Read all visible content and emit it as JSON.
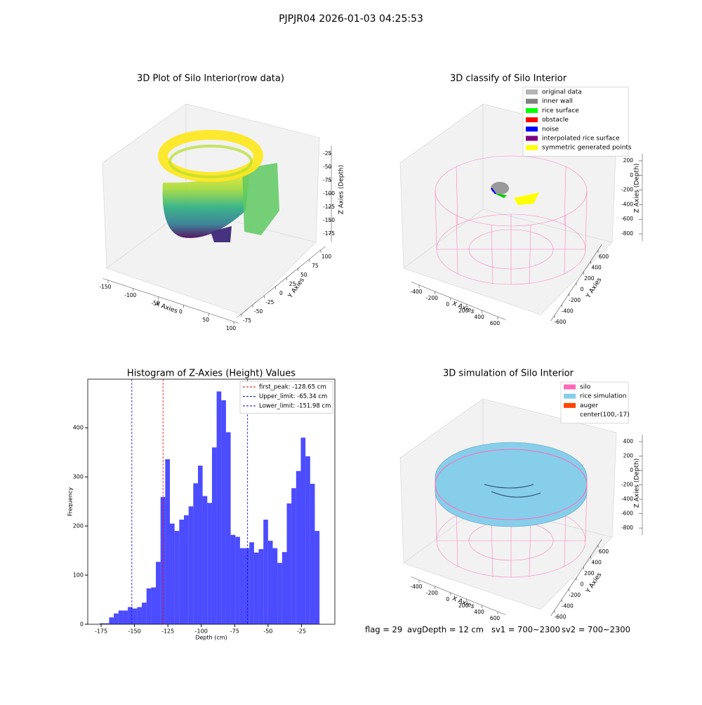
{
  "title": "PJPJR04 2026-01-03 04:25:53",
  "footer": [
    "flag = 29",
    "avgDepth = 12 cm",
    "sv1 = 700~2300",
    "sv2 = 700~2300"
  ],
  "chart_data": [
    {
      "type": "scatter3d",
      "title": "3D Plot of Silo Interior(row data)",
      "xlabel": "X Axies",
      "ylabel": "Y Axies",
      "zlabel": "Z Axies (Depth)",
      "xlim": [
        -160,
        110
      ],
      "xticks": [
        -150,
        -100,
        -50,
        0,
        50,
        100
      ],
      "ylim": [
        -85,
        110
      ],
      "yticks": [
        -75,
        -50,
        -25,
        0,
        25,
        50,
        75,
        100
      ],
      "zlim": [
        -190,
        -10
      ],
      "zticks": [
        -175,
        -150,
        -125,
        -100,
        -75,
        -50,
        -25
      ]
    },
    {
      "type": "scatter3d",
      "title": "3D classify of Silo Interior",
      "xlabel": "X Axies",
      "ylabel": "Y Axies",
      "zlabel": "Z Axies (Depth)",
      "xlim": [
        -500,
        700
      ],
      "xticks": [
        -400,
        -200,
        0,
        200,
        400,
        600
      ],
      "ylim": [
        -700,
        700
      ],
      "yticks": [
        -600,
        -400,
        -200,
        0,
        200,
        400,
        600
      ],
      "zlim": [
        -900,
        300
      ],
      "zticks": [
        -800,
        -600,
        -400,
        -200,
        0,
        200
      ],
      "legend_position": "upper right",
      "legend": [
        {
          "name": "original data",
          "color": "#b3b3b3"
        },
        {
          "name": "inner wall",
          "color": "#808080"
        },
        {
          "name": "rice surface",
          "color": "#00ff00"
        },
        {
          "name": "obstacle",
          "color": "#ff0000"
        },
        {
          "name": "noise",
          "color": "#0000ff"
        },
        {
          "name": "interpolated rice surface",
          "color": "#800080"
        },
        {
          "name": "symmetric generated points",
          "color": "#ffff00"
        }
      ]
    },
    {
      "type": "histogram",
      "title": "Histogram of Z-Axies (Height) Values",
      "xlabel": "Depth (cm)",
      "ylabel": "Frequency",
      "color": "#0000ff",
      "bins": [
        -176,
        -172.5,
        -169,
        -165.5,
        -162,
        -158.5,
        -155,
        -151.5,
        -148,
        -144.5,
        -141,
        -137.5,
        -134,
        -130.5,
        -127,
        -123.5,
        -120,
        -116.5,
        -113,
        -109.5,
        -106,
        -102.5,
        -99,
        -95.5,
        -92,
        -88.5,
        -85,
        -81.5,
        -78,
        -74.5,
        -71,
        -67.5,
        -64,
        -60.5,
        -57,
        -53.5,
        -50,
        -46.5,
        -43,
        -39.5,
        -36,
        -32.5,
        -29,
        -25.5,
        -22,
        -18.5,
        -15,
        -11.5
      ],
      "counts": [
        2,
        2,
        14,
        22,
        28,
        28,
        35,
        32,
        35,
        44,
        73,
        75,
        127,
        259,
        336,
        205,
        190,
        213,
        222,
        240,
        287,
        323,
        261,
        247,
        360,
        474,
        456,
        391,
        182,
        178,
        155,
        155,
        167,
        146,
        153,
        213,
        170,
        155,
        125,
        147,
        246,
        277,
        312,
        380,
        342,
        286,
        190
      ],
      "xlim": [
        -185,
        0
      ],
      "xticks": [
        -175,
        -150,
        -125,
        -100,
        -75,
        -50,
        -25
      ],
      "ylim": [
        0,
        499
      ],
      "yticks": [
        0,
        100,
        200,
        300,
        400
      ],
      "legend_position": "upper right",
      "vlines": [
        {
          "name": "first_peak: -128.65 cm",
          "value": -128.65,
          "color": "#ff0000"
        },
        {
          "name": "Upper_limit: -65.34 cm",
          "value": -65.34,
          "color": "#0000ff"
        },
        {
          "name": "Lower_limit: -151.98 cm",
          "value": -151.98,
          "color": "#0000ff"
        }
      ]
    },
    {
      "type": "surface3d",
      "title": "3D simulation of Silo Interior",
      "xlabel": "X Axies",
      "ylabel": "Y Axies",
      "zlabel": "Z Axies (Depth)",
      "xlim": [
        -500,
        700
      ],
      "xticks": [
        -400,
        -200,
        0,
        200,
        400,
        600
      ],
      "ylim": [
        -700,
        700
      ],
      "yticks": [
        -600,
        -400,
        -200,
        0,
        200,
        400,
        600
      ],
      "zlim": [
        -900,
        500
      ],
      "zticks": [
        -800,
        -600,
        -400,
        -200,
        0,
        200,
        400
      ],
      "legend_position": "upper right",
      "legend": [
        {
          "name": "silo",
          "color": "#ff69b4"
        },
        {
          "name": "rice simulation",
          "color": "#87ceeb"
        },
        {
          "name": "auger",
          "color": "#ff4500"
        },
        {
          "name": "center(100,-17)",
          "color": "#ffffff"
        }
      ]
    }
  ]
}
